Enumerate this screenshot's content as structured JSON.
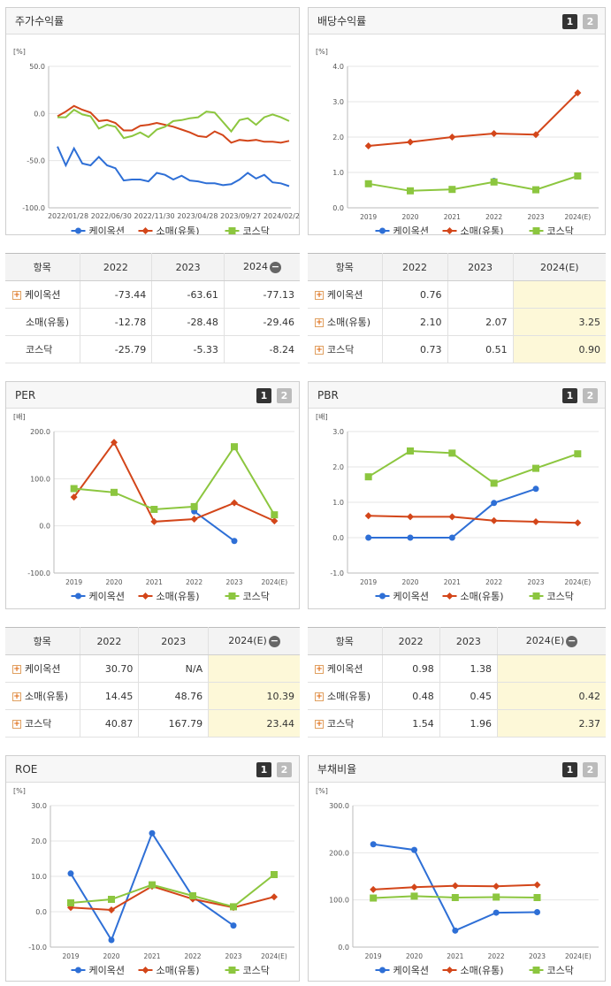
{
  "colors": {
    "kei": "#2e6fd6",
    "retail": "#d3461a",
    "kosdaq": "#8cc63f"
  },
  "page_buttons": [
    "1",
    "2"
  ],
  "legend": [
    "케이옥션",
    "소매(유통)",
    "코스닥"
  ],
  "return_chart": {
    "title": "주가수익률",
    "unit": "[%]",
    "chart_data": {
      "type": "line",
      "title": "주가수익률",
      "ylim": [
        -100,
        50
      ],
      "yticks": [
        "50.0",
        "0.0",
        "-50.0",
        "-100.0"
      ],
      "xticks": [
        "2022/01/28",
        "2022/06/30",
        "2022/11/30",
        "2023/04/28",
        "2023/09/27",
        "2024/02/29"
      ],
      "series": [
        {
          "name": "케이옥션",
          "values": [
            -35,
            -55,
            -37,
            -53,
            -55,
            -46,
            -55,
            -58,
            -71,
            -70,
            -70,
            -72,
            -63,
            -65,
            -70,
            -66,
            -71,
            -72,
            -74,
            -74,
            -76,
            -75,
            -70,
            -63,
            -69,
            -65,
            -73,
            -74,
            -77
          ]
        },
        {
          "name": "소매(유통)",
          "values": [
            -3,
            2,
            8,
            4,
            1,
            -8,
            -7,
            -10,
            -18,
            -18,
            -13,
            -12,
            -10,
            -12,
            -14,
            -17,
            -20,
            -24,
            -25,
            -19,
            -23,
            -31,
            -28,
            -29,
            -28,
            -30,
            -30,
            -31,
            -29
          ]
        },
        {
          "name": "코스닥",
          "values": [
            -4,
            -4,
            4,
            -1,
            -3,
            -16,
            -12,
            -14,
            -26,
            -24,
            -20,
            -25,
            -17,
            -14,
            -8,
            -7,
            -5,
            -4,
            2,
            1,
            -9,
            -19,
            -7,
            -5,
            -12,
            -4,
            -1,
            -4,
            -8
          ]
        }
      ]
    }
  },
  "dividend_chart": {
    "title": "배당수익률",
    "unit": "[%]",
    "chart_data": {
      "type": "line",
      "title": "배당수익률",
      "categories": [
        "2019",
        "2020",
        "2021",
        "2022",
        "2023",
        "2024(E)"
      ],
      "ylim": [
        0,
        4
      ],
      "yticks": [
        "4.0",
        "3.0",
        "2.0",
        "1.0",
        "0.0"
      ],
      "series": [
        {
          "name": "케이옥션",
          "values": [
            null,
            null,
            null,
            0.76,
            null,
            null
          ]
        },
        {
          "name": "소매(유통)",
          "values": [
            1.75,
            1.86,
            2.0,
            2.1,
            2.07,
            3.25
          ]
        },
        {
          "name": "코스닥",
          "values": [
            0.68,
            0.48,
            0.52,
            0.73,
            0.51,
            0.9
          ]
        }
      ]
    }
  },
  "per_chart": {
    "title": "PER",
    "unit": "[배]",
    "chart_data": {
      "type": "line",
      "title": "PER",
      "categories": [
        "2019",
        "2020",
        "2021",
        "2022",
        "2023",
        "2024(E)"
      ],
      "ylim": [
        -100,
        200
      ],
      "yticks": [
        "200.0",
        "100.0",
        "0.0",
        "-100.0"
      ],
      "series": [
        {
          "name": "케이옥션",
          "values": [
            null,
            null,
            null,
            30.7,
            -32,
            null
          ]
        },
        {
          "name": "소매(유통)",
          "values": [
            61,
            177,
            9,
            14.45,
            48.76,
            10.39
          ]
        },
        {
          "name": "코스닥",
          "values": [
            79,
            71,
            35,
            40.87,
            167.79,
            23.44
          ]
        }
      ]
    }
  },
  "pbr_chart": {
    "title": "PBR",
    "unit": "[배]",
    "chart_data": {
      "type": "line",
      "title": "PBR",
      "categories": [
        "2019",
        "2020",
        "2021",
        "2022",
        "2023",
        "2024(E)"
      ],
      "ylim": [
        -1,
        3
      ],
      "yticks": [
        "3.0",
        "2.0",
        "1.0",
        "0.0",
        "-1.0"
      ],
      "series": [
        {
          "name": "케이옥션",
          "values": [
            0,
            0,
            0,
            0.98,
            1.38,
            null
          ]
        },
        {
          "name": "소매(유통)",
          "values": [
            0.62,
            0.59,
            0.59,
            0.48,
            0.45,
            0.42
          ]
        },
        {
          "name": "코스닥",
          "values": [
            1.72,
            2.45,
            2.39,
            1.54,
            1.96,
            2.37
          ]
        }
      ]
    }
  },
  "roe_chart": {
    "title": "ROE",
    "unit": "[%]",
    "chart_data": {
      "type": "line",
      "title": "ROE",
      "categories": [
        "2019",
        "2020",
        "2021",
        "2022",
        "2023",
        "2024(E)"
      ],
      "ylim": [
        -10,
        30
      ],
      "yticks": [
        "30.0",
        "20.0",
        "10.0",
        "0.0",
        "-10.0"
      ],
      "series": [
        {
          "name": "케이옥션",
          "values": [
            10.8,
            -8,
            22.2,
            4.2,
            -3.9,
            null
          ]
        },
        {
          "name": "소매(유통)",
          "values": [
            1.2,
            0.5,
            7.2,
            3.6,
            1.2,
            4.2
          ]
        },
        {
          "name": "코스닥",
          "values": [
            2.5,
            3.5,
            7.6,
            4.5,
            1.4,
            10.5
          ]
        }
      ]
    }
  },
  "debt_chart": {
    "title": "부채비율",
    "unit": "[%]",
    "chart_data": {
      "type": "line",
      "title": "부채비율",
      "categories": [
        "2019",
        "2020",
        "2021",
        "2022",
        "2023",
        "2024(E)"
      ],
      "ylim": [
        0,
        300
      ],
      "yticks": [
        "300.0",
        "200.0",
        "100.0",
        "0.0"
      ],
      "series": [
        {
          "name": "케이옥션",
          "values": [
            218,
            206,
            35,
            73,
            74,
            null
          ]
        },
        {
          "name": "소매(유통)",
          "values": [
            122,
            127,
            130,
            129,
            132,
            null
          ]
        },
        {
          "name": "코스닥",
          "values": [
            104,
            108,
            105,
            106,
            105,
            null
          ]
        }
      ]
    }
  },
  "return_table": {
    "headers": [
      "항목",
      "2022",
      "2023",
      "2024"
    ],
    "rows": [
      {
        "name": "케이옥션",
        "plus": true,
        "values": [
          "-73.44",
          "-63.61",
          "-77.13"
        ]
      },
      {
        "name": "소매(유통)",
        "plus": false,
        "values": [
          "-12.78",
          "-28.48",
          "-29.46"
        ]
      },
      {
        "name": "코스닥",
        "plus": false,
        "values": [
          "-25.79",
          "-5.33",
          "-8.24"
        ]
      }
    ]
  },
  "dividend_table": {
    "headers": [
      "항목",
      "2022",
      "2023",
      "2024(E)"
    ],
    "rows": [
      {
        "name": "케이옥션",
        "plus": true,
        "values": [
          "0.76",
          "",
          ""
        ]
      },
      {
        "name": "소매(유통)",
        "plus": true,
        "values": [
          "2.10",
          "2.07",
          "3.25"
        ]
      },
      {
        "name": "코스닥",
        "plus": true,
        "values": [
          "0.73",
          "0.51",
          "0.90"
        ]
      }
    ]
  },
  "per_table": {
    "headers": [
      "항목",
      "2022",
      "2023",
      "2024(E)"
    ],
    "rows": [
      {
        "name": "케이옥션",
        "plus": true,
        "values": [
          "30.70",
          "N/A",
          ""
        ]
      },
      {
        "name": "소매(유통)",
        "plus": true,
        "values": [
          "14.45",
          "48.76",
          "10.39"
        ]
      },
      {
        "name": "코스닥",
        "plus": true,
        "values": [
          "40.87",
          "167.79",
          "23.44"
        ]
      }
    ]
  },
  "pbr_table": {
    "headers": [
      "항목",
      "2022",
      "2023",
      "2024(E)"
    ],
    "rows": [
      {
        "name": "케이옥션",
        "plus": true,
        "values": [
          "0.98",
          "1.38",
          ""
        ]
      },
      {
        "name": "소매(유통)",
        "plus": true,
        "values": [
          "0.48",
          "0.45",
          "0.42"
        ]
      },
      {
        "name": "코스닥",
        "plus": true,
        "values": [
          "1.54",
          "1.96",
          "2.37"
        ]
      }
    ]
  }
}
